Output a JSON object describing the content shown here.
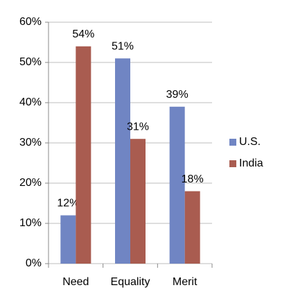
{
  "chart_data": {
    "type": "bar",
    "categories": [
      "Need",
      "Equality",
      "Merit"
    ],
    "series": [
      {
        "name": "U.S.",
        "color": "#7085c3",
        "values": [
          12,
          51,
          39
        ],
        "value_labels": [
          "12%",
          "51%",
          "39%"
        ]
      },
      {
        "name": "India",
        "color": "#a95c50",
        "values": [
          54,
          31,
          18
        ],
        "value_labels": [
          "54%",
          "31%",
          "18%"
        ]
      }
    ],
    "ylim": [
      0,
      60
    ],
    "yticks": [
      {
        "value": 0,
        "label": "0%"
      },
      {
        "value": 10,
        "label": "10%"
      },
      {
        "value": 20,
        "label": "20%"
      },
      {
        "value": 30,
        "label": "30%"
      },
      {
        "value": 40,
        "label": "40%"
      },
      {
        "value": 50,
        "label": "50%"
      },
      {
        "value": 60,
        "label": "60%"
      }
    ],
    "grid": true,
    "legend": "right"
  }
}
